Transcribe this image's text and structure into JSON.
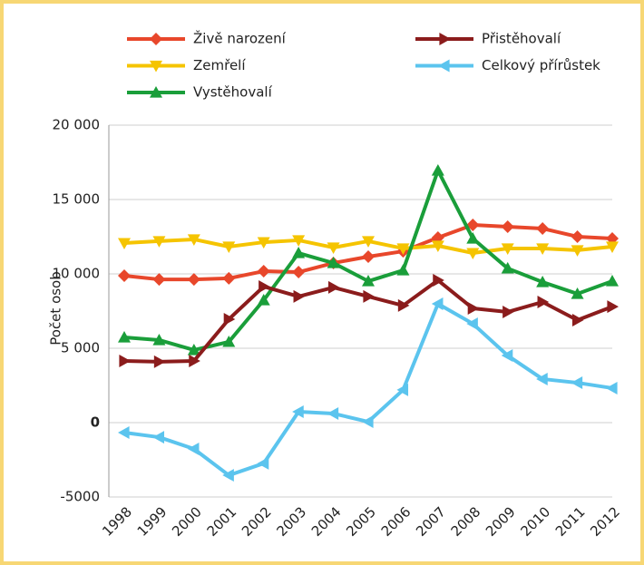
{
  "chart_data": {
    "type": "line",
    "y_label": "Počet osob",
    "categories": [
      "1998",
      "1999",
      "2000",
      "2001",
      "2002",
      "2003",
      "2004",
      "2005",
      "2006",
      "2007",
      "2008",
      "2009",
      "2010",
      "2011",
      "2012"
    ],
    "ylim": [
      -5000,
      20000
    ],
    "yticks": [
      {
        "value": -5000,
        "label": "-5000"
      },
      0,
      {
        "value": 5000,
        "label": "5 000"
      },
      {
        "value": 10000,
        "label": "10 000"
      },
      {
        "value": 15000,
        "label": "15 000"
      },
      {
        "value": 20000,
        "label": "20 000"
      }
    ],
    "grid": true,
    "legend": "top",
    "series": [
      {
        "name": "Živě narození",
        "color": "#e8472b",
        "marker": "diamond",
        "values": [
          9880,
          9630,
          9630,
          9700,
          10180,
          10120,
          10730,
          11160,
          11520,
          12440,
          13290,
          13170,
          13050,
          12500,
          12380
        ]
      },
      {
        "name": "Zemřelí",
        "color": "#f5c400",
        "marker": "down",
        "values": [
          12070,
          12200,
          12320,
          11830,
          12130,
          12260,
          11770,
          12200,
          11710,
          11890,
          11400,
          11710,
          11710,
          11590,
          11830
        ]
      },
      {
        "name": "Vystěhovalí",
        "color": "#1a9e3a",
        "marker": "up",
        "values": [
          5730,
          5550,
          4880,
          5430,
          8230,
          11400,
          10730,
          9510,
          10240,
          16950,
          12380,
          10370,
          9450,
          8660,
          9510
        ]
      },
      {
        "name": "Přistěhovalí",
        "color": "#8b1c1c",
        "marker": "right",
        "values": [
          4150,
          4090,
          4150,
          6950,
          9150,
          8480,
          9090,
          8480,
          7870,
          9570,
          7680,
          7440,
          8110,
          6890,
          7800
        ]
      },
      {
        "name": "Celkový přírůstek",
        "color": "#5bc4ee",
        "marker": "left",
        "values": [
          -670,
          -980,
          -1770,
          -3540,
          -2740,
          730,
          610,
          60,
          2200,
          7990,
          6650,
          4510,
          2930,
          2680,
          2320
        ]
      }
    ]
  }
}
